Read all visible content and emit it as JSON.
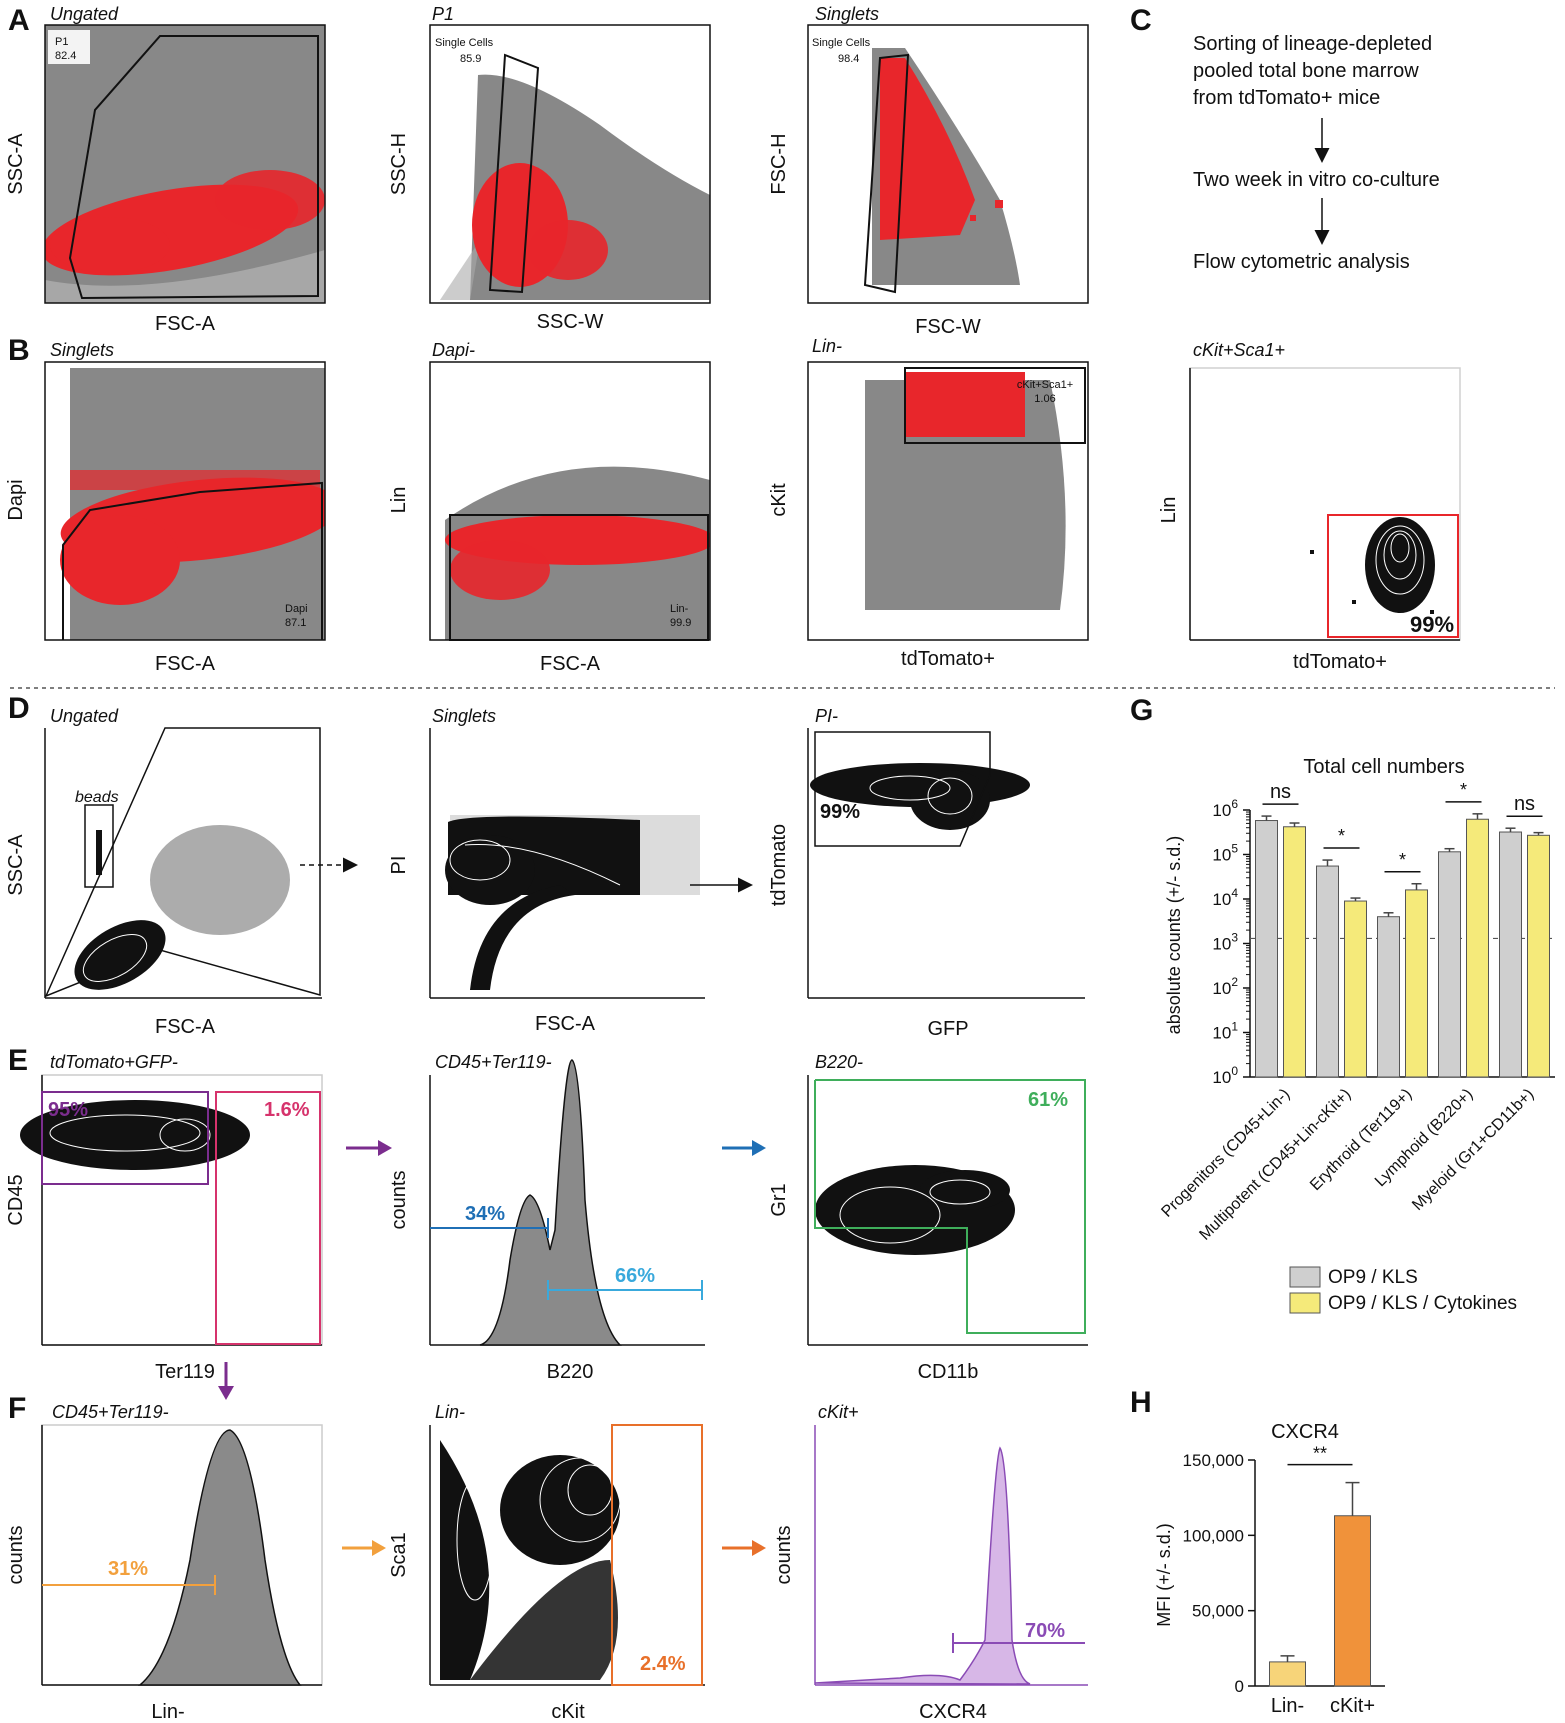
{
  "panel_letters": [
    "A",
    "B",
    "C",
    "D",
    "E",
    "F",
    "G",
    "H"
  ],
  "colors": {
    "grey": "#8a8a8a",
    "red": "#e8262b",
    "purple": "#7b2d8e",
    "magenta": "#d6336c",
    "blue": "#1f6fb5",
    "lightblue": "#39a9dc",
    "green": "#3fae5b",
    "orange": "#f2a03d",
    "darkorange": "#e8702a",
    "violet": "#8a4bb5",
    "yellow": "#f5ea7a",
    "bargrey": "#cfcfcf"
  },
  "A": {
    "p1": {
      "title": "Ungated",
      "xlabel": "FSC-A",
      "ylabel": "SSC-A",
      "gate_name": "P1",
      "gate_value": "82.4"
    },
    "p2": {
      "title": "P1",
      "xlabel": "SSC-W",
      "ylabel": "SSC-H",
      "gate_name": "Single Cells",
      "gate_value": "85.9"
    },
    "p3": {
      "title": "Singlets",
      "xlabel": "FSC-W",
      "ylabel": "FSC-H",
      "gate_name": "Single Cells",
      "gate_value": "98.4"
    }
  },
  "B": {
    "p1": {
      "title": "Singlets",
      "xlabel": "FSC-A",
      "ylabel": "Dapi",
      "gate_name": "Dapi",
      "gate_value": "87.1"
    },
    "p2": {
      "title": "Dapi-",
      "xlabel": "FSC-A",
      "ylabel": "Lin",
      "gate_name": "Lin-",
      "gate_value": "99.9"
    },
    "p3": {
      "title": "Lin-",
      "xlabel": "tdTomato+",
      "ylabel": "cKit",
      "gate_name": "cKit+Sca1+",
      "gate_value": "1.06"
    }
  },
  "C": {
    "steps": [
      "Sorting of lineage-depleted",
      "pooled total bone marrow",
      "from tdTomato+ mice",
      "Two week in vitro co-culture",
      "Flow cytometric analysis"
    ],
    "plot": {
      "title": "cKit+Sca1+",
      "xlabel": "tdTomato+",
      "ylabel": "Lin",
      "gate_value": "99%"
    }
  },
  "D": {
    "p1": {
      "title": "Ungated",
      "xlabel": "FSC-A",
      "ylabel": "SSC-A",
      "gate_name": "beads"
    },
    "p2": {
      "title": "Singlets",
      "xlabel": "FSC-A",
      "ylabel": "PI"
    },
    "p3": {
      "title": "PI-",
      "xlabel": "GFP",
      "ylabel": "tdTomato",
      "gate_value": "99%"
    }
  },
  "E": {
    "p1": {
      "title": "tdTomato+GFP-",
      "xlabel": "Ter119",
      "ylabel": "CD45",
      "gate1": "95%",
      "gate2": "1.6%"
    },
    "p2": {
      "title": "CD45+Ter119-",
      "xlabel": "B220",
      "ylabel": "counts",
      "gate1": "34%",
      "gate2": "66%"
    },
    "p3": {
      "title": "B220-",
      "xlabel": "CD11b",
      "ylabel": "Gr1",
      "gate1": "61%"
    }
  },
  "F": {
    "p1": {
      "title": "CD45+Ter119-",
      "xlabel": "Lin-",
      "ylabel": "counts",
      "gate1": "31%"
    },
    "p2": {
      "title": "Lin-",
      "xlabel": "cKit",
      "ylabel": "Sca1",
      "gate1": "2.4%"
    },
    "p3": {
      "title": "cKit+",
      "xlabel": "CXCR4",
      "ylabel": "counts",
      "gate1": "70%"
    }
  },
  "chart_data": [
    {
      "id": "G",
      "type": "bar",
      "title": "Total cell numbers",
      "ylabel": "absolute counts (+/- s.d.)",
      "yscale": "log",
      "ylim_exp": [
        0,
        6
      ],
      "ytick_base": "10",
      "ytick_exps": [
        "0",
        "1",
        "2",
        "3",
        "4",
        "5",
        "6"
      ],
      "reference_line": 1300,
      "categories": [
        "Progenitors (CD45+Lin-)",
        "Multipotent (CD45+Lin-cKit+)",
        "Erythroid (Ter119+)",
        "Lymphoid (B220+)",
        "Myeloid (Gr1+CD11b+)"
      ],
      "significance": [
        "ns",
        "*",
        "*",
        "*",
        "ns"
      ],
      "series": [
        {
          "name": "OP9 / KLS",
          "color": "#cfcfcf",
          "values": [
            580000,
            55000,
            4000,
            115000,
            320000
          ],
          "errors": [
            150000,
            20000,
            900,
            20000,
            70000
          ]
        },
        {
          "name": "OP9 / KLS / Cytokines",
          "color": "#f5ea7a",
          "values": [
            420000,
            9000,
            16000,
            620000,
            270000
          ],
          "errors": [
            90000,
            1500,
            6000,
            200000,
            40000
          ]
        }
      ]
    },
    {
      "id": "H",
      "type": "bar",
      "title": "CXCR4",
      "ylabel": "MFI (+/- s.d.)",
      "ylim": [
        0,
        150000
      ],
      "yticks": [
        0,
        50000,
        100000,
        150000
      ],
      "ytick_labels": [
        "0",
        "50,000",
        "100,000",
        "150,000"
      ],
      "categories": [
        "Lin-",
        "cKit+"
      ],
      "values": [
        16000,
        113000
      ],
      "errors": [
        4000,
        22000
      ],
      "colors": [
        "#f7d479",
        "#f0923a"
      ],
      "significance": "**"
    }
  ]
}
